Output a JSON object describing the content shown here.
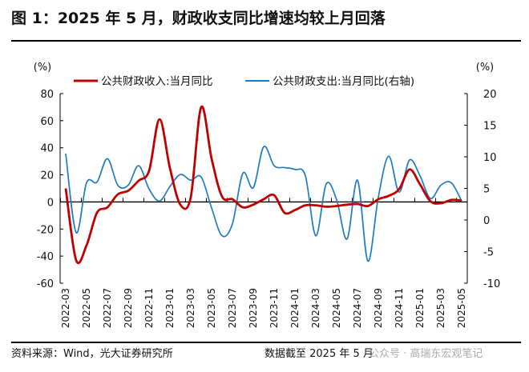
{
  "title": "图 1：2025 年 5 月，财政收支同比增速均较上月回落",
  "footer": {
    "source": "资料来源：Wind，光大证券研究所",
    "as_of": "数据截至 2025 年 5 月",
    "watermark": "公众号 · 高瑞东宏观笔记"
  },
  "chart_data": {
    "type": "line",
    "left_unit": "(%)",
    "right_unit": "(%)",
    "left_ylim": [
      -60,
      80
    ],
    "left_ticks": [
      80,
      60,
      40,
      20,
      0,
      -20,
      -40,
      -60
    ],
    "right_ylim": [
      -10,
      20
    ],
    "right_ticks": [
      20,
      15,
      10,
      5,
      0,
      -5,
      -10
    ],
    "grid": false,
    "legend": "top",
    "x": [
      "2022-03",
      "2022-04",
      "2022-05",
      "2022-06",
      "2022-07",
      "2022-08",
      "2022-09",
      "2022-10",
      "2022-11",
      "2022-12",
      "2023-01",
      "2023-02",
      "2023-03",
      "2023-04",
      "2023-05",
      "2023-06",
      "2023-07",
      "2023-08",
      "2023-09",
      "2023-10",
      "2023-11",
      "2023-12",
      "2024-01",
      "2024-02",
      "2024-03",
      "2024-04",
      "2024-05",
      "2024-06",
      "2024-07",
      "2024-08",
      "2024-09",
      "2024-10",
      "2024-11",
      "2024-12",
      "2025-01",
      "2025-02",
      "2025-03",
      "2025-04",
      "2025-05"
    ],
    "x_tick_labels": [
      "2022-03",
      "2022-05",
      "2022-07",
      "2022-09",
      "2022-11",
      "2023-01",
      "2023-03",
      "2023-05",
      "2023-07",
      "2023-09",
      "2023-11",
      "2024-01",
      "2024-03",
      "2024-05",
      "2024-07",
      "2024-09",
      "2024-11",
      "2025-01",
      "2025-03",
      "2025-05"
    ],
    "series": [
      {
        "name": "公共财政收入:当月同比",
        "axis": "left",
        "color": "#C00000",
        "values": [
          10,
          -43,
          -32,
          -8,
          -4,
          5.6,
          8.3,
          15.7,
          23,
          61,
          25,
          -2,
          3.5,
          70,
          32,
          4,
          2,
          -4,
          -2,
          2,
          5,
          -8,
          -6,
          -2.5,
          -2.5,
          -3.5,
          -3,
          -2,
          -1.5,
          -3,
          2,
          4.5,
          9.5,
          24,
          13,
          0.5,
          -1,
          1.5,
          1
        ]
      },
      {
        "name": "公共财政支出:当月同比(右轴)",
        "axis": "right",
        "color": "#1F7BC1",
        "values": [
          10.5,
          -2,
          5.9,
          6,
          9.7,
          5.5,
          5.5,
          8.6,
          4.9,
          3,
          5.3,
          7.2,
          6.3,
          6.8,
          1.9,
          -2.5,
          -0.6,
          7.4,
          5.1,
          11.6,
          8.6,
          8.3,
          8,
          7,
          -2.5,
          5.7,
          3.2,
          -3,
          6.3,
          -6.5,
          3.6,
          10.1,
          4.4,
          9.5,
          7,
          3.4,
          5.5,
          5.9,
          3
        ]
      }
    ]
  }
}
